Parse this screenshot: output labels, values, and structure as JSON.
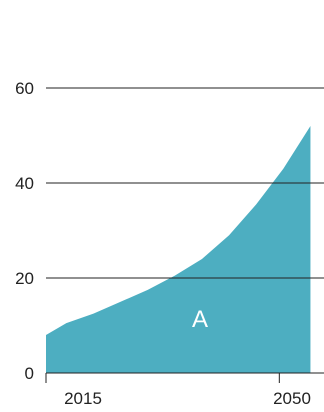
{
  "chart_data": {
    "type": "area",
    "x": [
      2015,
      2018,
      2022,
      2026,
      2030,
      2034,
      2038,
      2042,
      2046,
      2050,
      2054
    ],
    "series": [
      {
        "name": "A",
        "values": [
          8,
          10.5,
          12.5,
          15,
          17.5,
          20.5,
          24,
          29,
          35.5,
          43,
          52
        ]
      }
    ],
    "xlim": [
      2015,
      2056
    ],
    "ylim": [
      0,
      60
    ],
    "yticks": [
      0,
      20,
      40,
      60
    ],
    "xtick_labels": [
      "2015",
      "2050"
    ],
    "grid": true,
    "colors": {
      "area": "#4daec1",
      "grid": "#222222",
      "area_label": "#ffffff"
    }
  }
}
